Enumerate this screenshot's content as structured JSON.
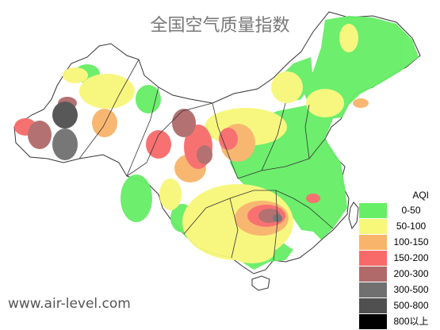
{
  "title": "全国空气质量指数",
  "watermark": "www.air-level.com",
  "legend": {
    "title": "AQI",
    "items": [
      {
        "label": "0-50",
        "color": "#66ee66"
      },
      {
        "label": "50-100",
        "color": "#f7f77a"
      },
      {
        "label": "100-150",
        "color": "#f8b46a"
      },
      {
        "label": "150-200",
        "color": "#f86a6a"
      },
      {
        "label": "200-300",
        "color": "#b06a6a"
      },
      {
        "label": "300-500",
        "color": "#707070"
      },
      {
        "label": "500-800",
        "color": "#505050"
      },
      {
        "label": "800以上",
        "color": "#000000"
      }
    ]
  }
}
